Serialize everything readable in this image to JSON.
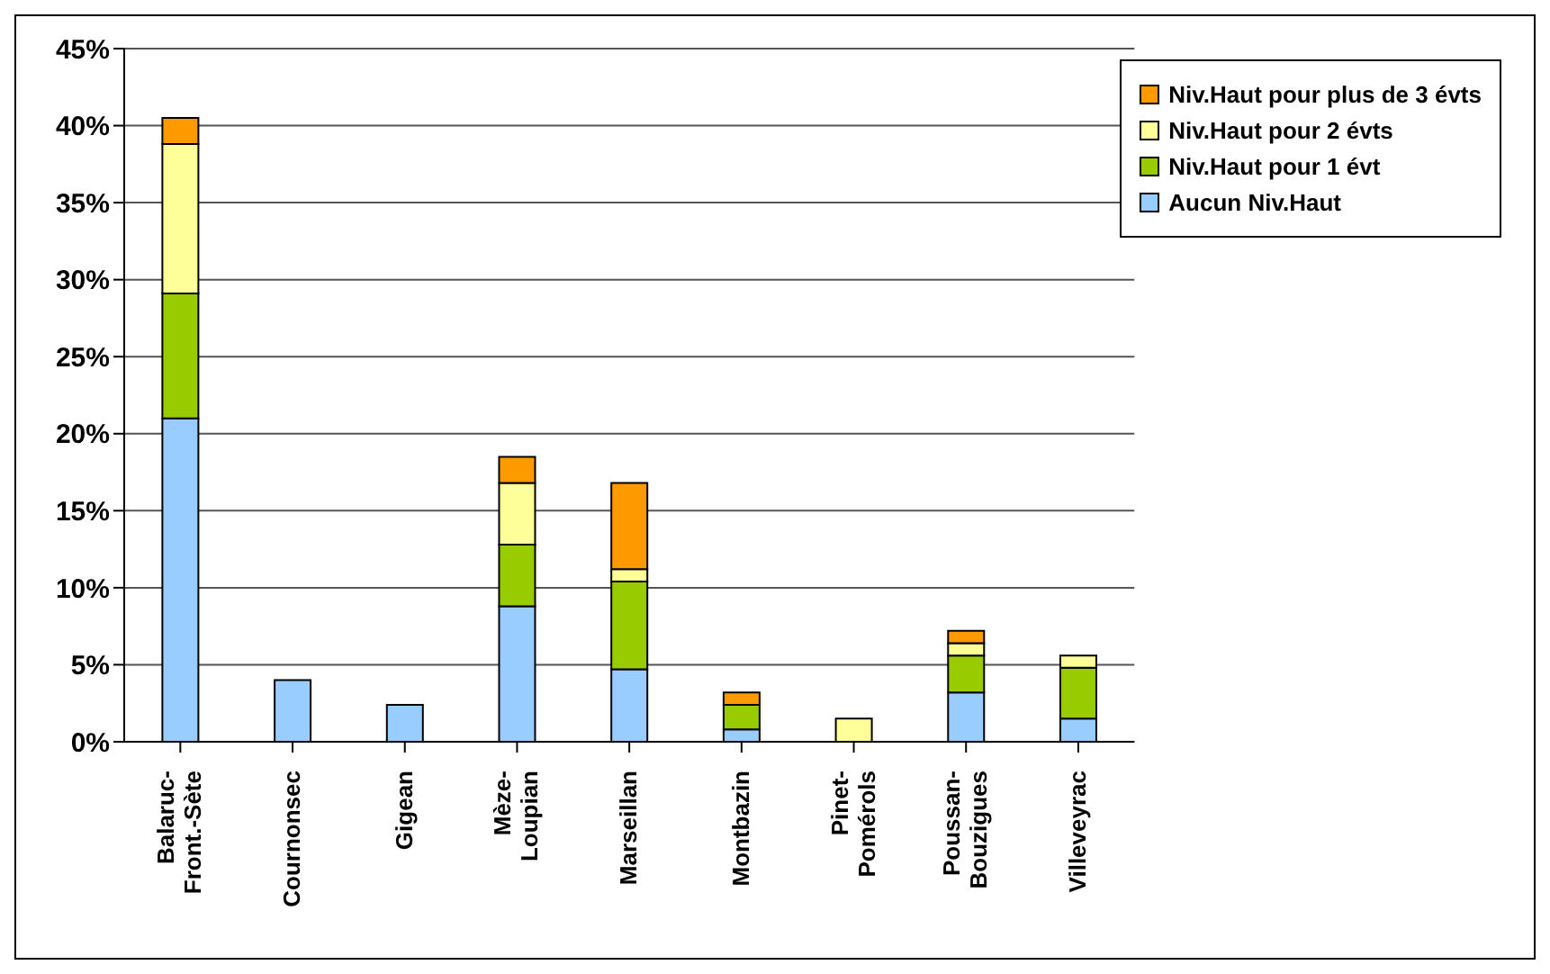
{
  "chart_data": {
    "type": "bar",
    "stacked": true,
    "categories": [
      "Balaruc-\nFront.-Sète",
      "Cournonsec",
      "Gigean",
      "Mèze-\nLoupian",
      "Marseillan",
      "Montbazin",
      "Pinet-\nPomérols",
      "Poussan-\nBouzigues",
      "Villeveyrac"
    ],
    "series": [
      {
        "name": "Aucun Niv.Haut",
        "color": "#99ccff",
        "values": [
          21.0,
          4.0,
          2.4,
          8.8,
          4.7,
          0.8,
          0,
          3.2,
          1.5
        ]
      },
      {
        "name": "Niv.Haut pour 1 évt",
        "color": "#99cc00",
        "values": [
          8.1,
          0,
          0,
          4.0,
          5.7,
          1.6,
          0,
          2.4,
          3.3
        ]
      },
      {
        "name": "Niv.Haut pour 2 évts",
        "color": "#ffff99",
        "values": [
          9.7,
          0,
          0,
          4.0,
          0.8,
          0,
          1.5,
          0.8,
          0.8
        ]
      },
      {
        "name": "Niv.Haut pour plus de 3 évts",
        "color": "#ff9900",
        "values": [
          1.7,
          0,
          0,
          1.7,
          5.6,
          0.8,
          0,
          0.8,
          0
        ]
      }
    ],
    "ylim": [
      0,
      45
    ],
    "yticks": [
      {
        "value": 0,
        "label": "0%"
      },
      {
        "value": 5,
        "label": "5%"
      },
      {
        "value": 10,
        "label": "10%"
      },
      {
        "value": 15,
        "label": "15%"
      },
      {
        "value": 20,
        "label": "20%"
      },
      {
        "value": 25,
        "label": "25%"
      },
      {
        "value": 30,
        "label": "30%"
      },
      {
        "value": 35,
        "label": "35%"
      },
      {
        "value": 40,
        "label": "40%"
      },
      {
        "value": 45,
        "label": "45%"
      }
    ],
    "grid": "y",
    "legend": "top right"
  }
}
